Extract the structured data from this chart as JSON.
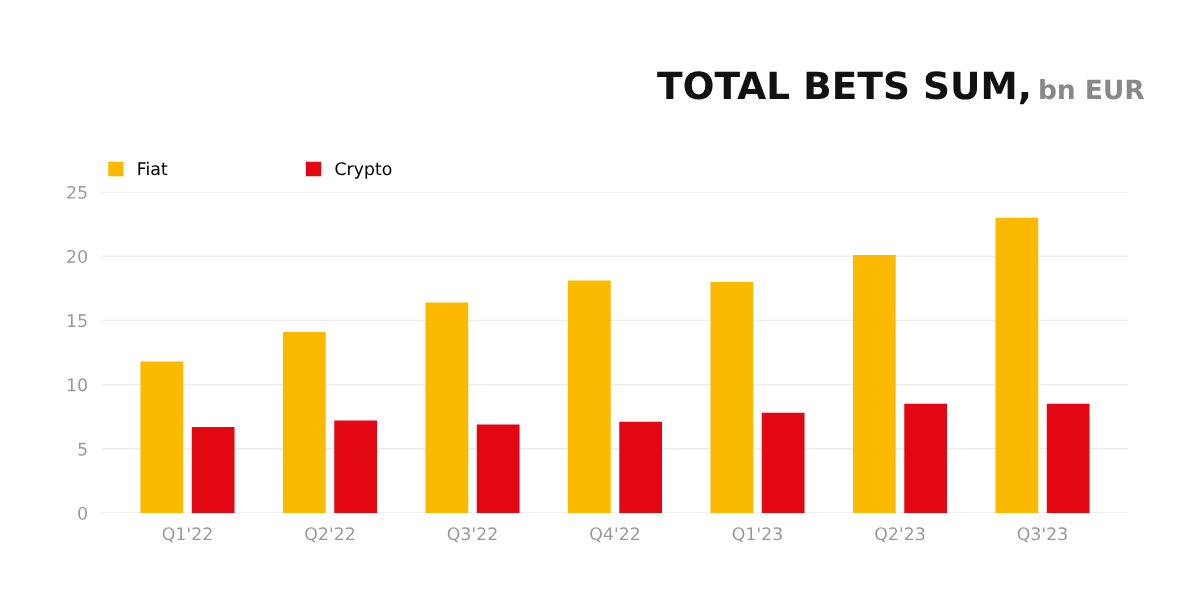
{
  "chart_data": {
    "type": "bar",
    "title": "TOTAL BETS SUM,",
    "subtitle": "bn EUR",
    "categories": [
      "Q1'22",
      "Q2'22",
      "Q3'22",
      "Q4'22",
      "Q1'23",
      "Q2'23",
      "Q3'23"
    ],
    "series": [
      {
        "name": "Fiat",
        "color": "#fbb900",
        "values": [
          11.8,
          14.1,
          16.4,
          18.1,
          18.0,
          20.1,
          23.0
        ]
      },
      {
        "name": "Crypto",
        "color": "#e30613",
        "values": [
          6.7,
          7.2,
          6.9,
          7.1,
          7.8,
          8.5,
          8.5
        ]
      }
    ],
    "ylim": [
      0,
      25
    ],
    "yticks": [
      0,
      5,
      10,
      15,
      20,
      25
    ],
    "grid": "y",
    "legend": "top left"
  }
}
